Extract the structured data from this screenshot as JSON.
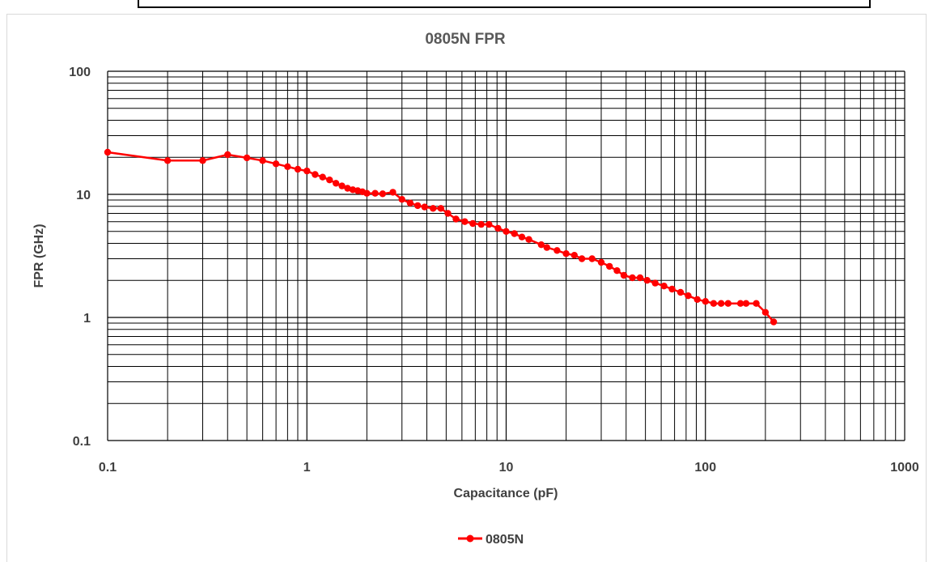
{
  "chart_data": {
    "type": "line",
    "title": "0805N FPR",
    "xlabel": "Capacitance (pF)",
    "ylabel": "FPR (GHz)",
    "x_scale": "log",
    "y_scale": "log",
    "xlim": [
      0.1,
      1000
    ],
    "ylim": [
      0.1,
      100
    ],
    "x_ticks": [
      "0.1",
      "1",
      "10",
      "100",
      "1000"
    ],
    "y_ticks": [
      "0.1",
      "1",
      "10",
      "100"
    ],
    "grid": true,
    "legend_position": "bottom",
    "series": [
      {
        "name": "0805N",
        "color": "#ff0000",
        "x": [
          0.1,
          0.2,
          0.3,
          0.4,
          0.5,
          0.6,
          0.7,
          0.8,
          0.9,
          1.0,
          1.1,
          1.2,
          1.3,
          1.4,
          1.5,
          1.6,
          1.7,
          1.8,
          1.9,
          2.0,
          2.2,
          2.4,
          2.7,
          3.0,
          3.3,
          3.6,
          3.9,
          4.3,
          4.7,
          5.1,
          5.6,
          6.2,
          6.8,
          7.5,
          8.2,
          9.1,
          10,
          11,
          12,
          13,
          15,
          16,
          18,
          20,
          22,
          24,
          27,
          30,
          33,
          36,
          39,
          43,
          47,
          51,
          56,
          62,
          68,
          75,
          82,
          91,
          100,
          110,
          120,
          130,
          150,
          160,
          180,
          200,
          220
        ],
        "y": [
          22,
          18.8,
          18.8,
          21,
          19.8,
          18.8,
          17.7,
          16.8,
          16.0,
          15.5,
          14.5,
          13.8,
          13.1,
          12.3,
          11.7,
          11.2,
          10.9,
          10.7,
          10.5,
          10.2,
          10.2,
          10.1,
          10.4,
          9.1,
          8.5,
          8.1,
          7.9,
          7.7,
          7.7,
          7.0,
          6.3,
          6.0,
          5.8,
          5.7,
          5.7,
          5.3,
          5.0,
          4.8,
          4.5,
          4.3,
          3.9,
          3.7,
          3.5,
          3.3,
          3.2,
          3.0,
          3.0,
          2.8,
          2.6,
          2.4,
          2.2,
          2.1,
          2.1,
          2.0,
          1.9,
          1.8,
          1.7,
          1.6,
          1.5,
          1.4,
          1.35,
          1.3,
          1.3,
          1.3,
          1.3,
          1.3,
          1.3,
          1.1,
          0.92
        ]
      }
    ]
  }
}
